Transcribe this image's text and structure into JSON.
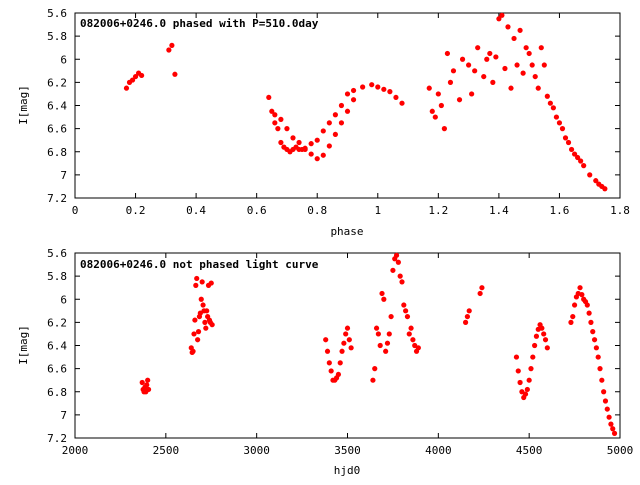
{
  "chart_data": [
    {
      "type": "scatter",
      "title": "082006+0246.0 phased with P=510.0day",
      "xlabel": "phase",
      "ylabel": "I[mag]",
      "xlim": [
        0,
        1.8
      ],
      "ylim": [
        5.6,
        7.2
      ],
      "y_inverted": true,
      "grid": false,
      "color": "#ff0000",
      "x_ticks": [
        "0",
        "0.2",
        "0.4",
        "0.6",
        "0.8",
        "1",
        "1.2",
        "1.4",
        "1.6",
        "1.8"
      ],
      "y_ticks": [
        "5.6",
        "5.8",
        "6",
        "6.2",
        "6.4",
        "6.6",
        "6.8",
        "7",
        "7.2"
      ],
      "series": [
        {
          "x": [
            0.17,
            0.18,
            0.19,
            0.2,
            0.21,
            0.22,
            0.31,
            0.32,
            0.33,
            0.64,
            0.65,
            0.66,
            0.67,
            0.68,
            0.69,
            0.7,
            0.71,
            0.72,
            0.73,
            0.74,
            0.75,
            0.76,
            0.78,
            0.8,
            0.82,
            0.84,
            0.86,
            0.88,
            0.9,
            0.92,
            0.66,
            0.68,
            0.7,
            0.72,
            0.74,
            0.76,
            0.78,
            0.8,
            0.82,
            0.84,
            0.86,
            0.88,
            0.9,
            0.92,
            0.95,
            0.98,
            1.0,
            1.02,
            1.04,
            1.06,
            1.08,
            1.17,
            1.18,
            1.19,
            1.2,
            1.21,
            1.22,
            1.23,
            1.24,
            1.25,
            1.27,
            1.28,
            1.3,
            1.31,
            1.32,
            1.33,
            1.35,
            1.36,
            1.37,
            1.38,
            1.39,
            1.4,
            1.41,
            1.42,
            1.43,
            1.44,
            1.45,
            1.46,
            1.47,
            1.48,
            1.49,
            1.5,
            1.51,
            1.52,
            1.53,
            1.54,
            1.55,
            1.56,
            1.57,
            1.58,
            1.59,
            1.6,
            1.61,
            1.62,
            1.63,
            1.64,
            1.65,
            1.66,
            1.67,
            1.68,
            1.7,
            1.72,
            1.73,
            1.74,
            1.75
          ],
          "y": [
            6.25,
            6.2,
            6.18,
            6.15,
            6.12,
            6.14,
            5.92,
            5.88,
            6.13,
            6.33,
            6.45,
            6.55,
            6.6,
            6.72,
            6.76,
            6.78,
            6.8,
            6.78,
            6.76,
            6.78,
            6.78,
            6.77,
            6.73,
            6.7,
            6.62,
            6.55,
            6.48,
            6.4,
            6.3,
            6.27,
            6.48,
            6.52,
            6.6,
            6.68,
            6.72,
            6.78,
            6.82,
            6.86,
            6.83,
            6.75,
            6.65,
            6.55,
            6.45,
            6.35,
            6.24,
            6.22,
            6.24,
            6.26,
            6.28,
            6.33,
            6.38,
            6.25,
            6.45,
            6.5,
            6.3,
            6.4,
            6.6,
            5.95,
            6.2,
            6.1,
            6.35,
            6.0,
            6.05,
            6.3,
            6.1,
            5.9,
            6.15,
            6.0,
            5.95,
            6.2,
            5.98,
            5.65,
            5.62,
            6.08,
            5.72,
            6.25,
            5.82,
            6.05,
            5.75,
            6.12,
            5.9,
            5.95,
            6.05,
            6.15,
            6.25,
            5.9,
            6.05,
            6.32,
            6.38,
            6.42,
            6.5,
            6.55,
            6.6,
            6.68,
            6.72,
            6.78,
            6.82,
            6.85,
            6.88,
            6.92,
            7.0,
            7.05,
            7.08,
            7.1,
            7.12
          ]
        }
      ]
    },
    {
      "type": "scatter",
      "title": "082006+0246.0 not phased light curve",
      "xlabel": "hjd0",
      "ylabel": "I[mag]",
      "xlim": [
        2000,
        5000
      ],
      "ylim": [
        5.6,
        7.2
      ],
      "y_inverted": true,
      "grid": false,
      "color": "#ff0000",
      "x_ticks": [
        "2000",
        "2500",
        "3000",
        "3500",
        "4000",
        "4500",
        "5000"
      ],
      "y_ticks": [
        "5.6",
        "5.8",
        "6",
        "6.2",
        "6.4",
        "6.6",
        "6.8",
        "7",
        "7.2"
      ],
      "series": [
        {
          "x": [
            2370,
            2375,
            2380,
            2385,
            2390,
            2395,
            2400,
            2405,
            2640,
            2645,
            2650,
            2655,
            2660,
            2665,
            2670,
            2675,
            2680,
            2685,
            2690,
            2695,
            2700,
            2705,
            2710,
            2715,
            2720,
            2725,
            2730,
            2735,
            2740,
            2745,
            2750,
            2755,
            3380,
            3390,
            3400,
            3410,
            3420,
            3430,
            3440,
            3450,
            3460,
            3470,
            3480,
            3490,
            3500,
            3510,
            3520,
            3640,
            3650,
            3660,
            3670,
            3680,
            3690,
            3700,
            3710,
            3720,
            3730,
            3740,
            3750,
            3760,
            3770,
            3780,
            3790,
            3800,
            3810,
            3820,
            3830,
            3840,
            3850,
            3860,
            3870,
            3880,
            3890,
            4150,
            4160,
            4170,
            4230,
            4240,
            4430,
            4440,
            4450,
            4460,
            4470,
            4480,
            4490,
            4500,
            4510,
            4520,
            4530,
            4540,
            4550,
            4560,
            4570,
            4580,
            4590,
            4600,
            4730,
            4740,
            4750,
            4760,
            4770,
            4780,
            4790,
            4800,
            4810,
            4820,
            4830,
            4840,
            4850,
            4860,
            4870,
            4880,
            4890,
            4900,
            4910,
            4920,
            4930,
            4940,
            4950,
            4960,
            4970
          ],
          "y": [
            6.72,
            6.78,
            6.8,
            6.76,
            6.8,
            6.74,
            6.7,
            6.78,
            6.42,
            6.46,
            6.45,
            6.3,
            6.18,
            5.88,
            5.82,
            6.35,
            6.28,
            6.15,
            6.12,
            6.0,
            5.85,
            6.05,
            6.1,
            6.2,
            6.25,
            6.1,
            6.15,
            5.88,
            6.18,
            6.2,
            5.86,
            6.22,
            6.35,
            6.45,
            6.55,
            6.62,
            6.7,
            6.7,
            6.68,
            6.65,
            6.55,
            6.45,
            6.38,
            6.3,
            6.25,
            6.35,
            6.42,
            6.7,
            6.6,
            6.25,
            6.3,
            6.4,
            5.95,
            6.0,
            6.45,
            6.38,
            6.3,
            6.15,
            5.75,
            5.65,
            5.62,
            5.68,
            5.8,
            5.85,
            6.05,
            6.1,
            6.15,
            6.3,
            6.25,
            6.35,
            6.4,
            6.45,
            6.42,
            6.2,
            6.15,
            6.1,
            5.95,
            5.9,
            6.5,
            6.62,
            6.72,
            6.8,
            6.85,
            6.82,
            6.78,
            6.7,
            6.6,
            6.5,
            6.4,
            6.32,
            6.26,
            6.22,
            6.25,
            6.3,
            6.35,
            6.42,
            6.2,
            6.15,
            6.05,
            5.98,
            5.95,
            5.9,
            5.96,
            6.0,
            6.02,
            6.05,
            6.12,
            6.2,
            6.28,
            6.35,
            6.42,
            6.5,
            6.6,
            6.7,
            6.8,
            6.88,
            6.95,
            7.02,
            7.08,
            7.12,
            7.16
          ]
        }
      ]
    }
  ]
}
